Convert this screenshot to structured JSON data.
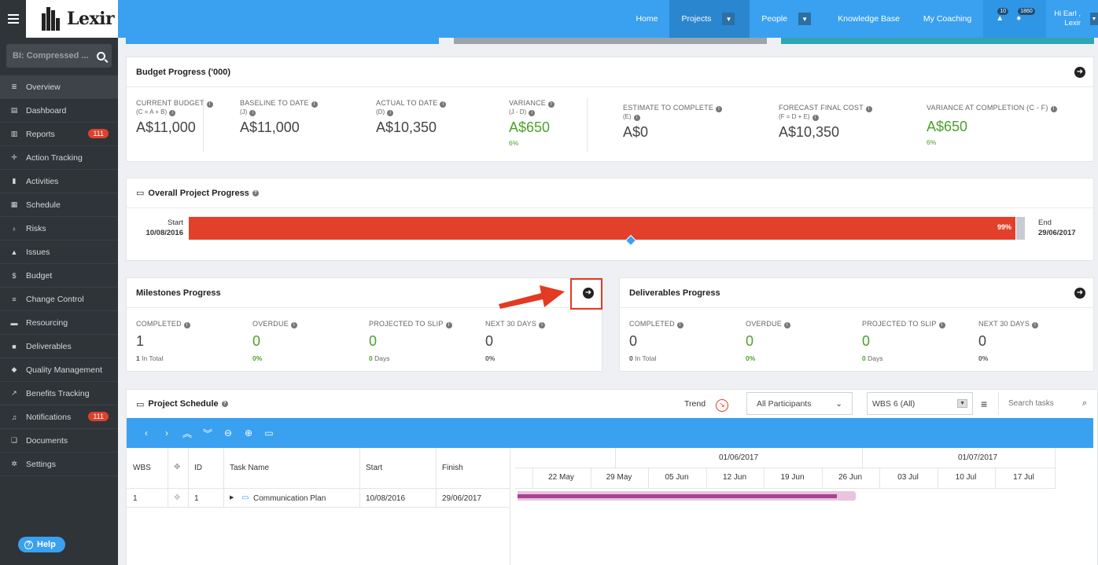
{
  "app": {
    "logo_text": "Lexir",
    "search_value": "BI: Compressed ...",
    "help_label": "Help"
  },
  "sidebar": {
    "items": [
      {
        "label": "Overview",
        "icon": "list-icon",
        "active": true
      },
      {
        "label": "Dashboard",
        "icon": "dashboard-icon"
      },
      {
        "label": "Reports",
        "icon": "bar-chart-icon",
        "badge": "111"
      },
      {
        "label": "Action Tracking",
        "icon": "crosshair-icon"
      },
      {
        "label": "Activities",
        "icon": "bookmark-icon"
      },
      {
        "label": "Schedule",
        "icon": "calendar-icon"
      },
      {
        "label": "Risks",
        "icon": "bulb-icon"
      },
      {
        "label": "Issues",
        "icon": "warning-icon"
      },
      {
        "label": "Budget",
        "icon": "dollar-icon"
      },
      {
        "label": "Change Control",
        "icon": "change-icon"
      },
      {
        "label": "Resourcing",
        "icon": "folder-icon"
      },
      {
        "label": "Deliverables",
        "icon": "truck-icon"
      },
      {
        "label": "Quality Management",
        "icon": "tag-icon"
      },
      {
        "label": "Benefits Tracking",
        "icon": "line-chart-icon"
      },
      {
        "label": "Notifications",
        "icon": "bell-icon",
        "badge": "111"
      },
      {
        "label": "Documents",
        "icon": "documents-icon"
      },
      {
        "label": "Settings",
        "icon": "cogs-icon"
      }
    ]
  },
  "topnav": {
    "home": "Home",
    "projects": "Projects",
    "people": "People",
    "knowledge_base": "Knowledge Base",
    "my_coaching": "My Coaching",
    "alert_count": "10",
    "notification_count": "1860",
    "user_greeting": "Hi Earl ,",
    "user_org": "Lexir"
  },
  "budget": {
    "title": "Budget Progress ('000)",
    "metrics": [
      {
        "label": "CURRENT BUDGET",
        "sub": "(C = A + B)",
        "value": "A$11,000"
      },
      {
        "label": "BASELINE TO DATE",
        "sub": "(J)",
        "value": "A$11,000"
      },
      {
        "label": "ACTUAL TO DATE",
        "sub": "(D)",
        "value": "A$10,350"
      },
      {
        "label": "VARIANCE",
        "sub": "(J - D)",
        "value": "A$650",
        "pct": "6%"
      },
      {
        "label": "ESTIMATE TO COMPLETE",
        "sub": "(E)",
        "value": "A$0"
      },
      {
        "label": "FORECAST FINAL COST",
        "sub": "(F = D + E)",
        "value": "A$10,350"
      },
      {
        "label": "VARIANCE AT COMPLETION (C - F)",
        "sub": "",
        "value": "A$650",
        "pct": "6%"
      }
    ]
  },
  "overall": {
    "title": "Overall Project Progress",
    "start_label": "Start",
    "start_date": "10/08/2016",
    "end_label": "End",
    "end_date": "29/06/2017",
    "percent_label": "99%",
    "percent": 0.99
  },
  "milestones": {
    "title": "Milestones Progress",
    "metrics": [
      {
        "label": "COMPLETED",
        "value": "1",
        "sub": "1",
        "sub_suffix": "In Total"
      },
      {
        "label": "OVERDUE",
        "value": "0",
        "sub": "0%"
      },
      {
        "label": "PROJECTED TO SLIP",
        "value": "0",
        "sub": "0",
        "sub_suffix": "Days"
      },
      {
        "label": "NEXT 30 DAYS",
        "value": "0",
        "sub": "0%"
      }
    ]
  },
  "deliverables": {
    "title": "Deliverables Progress",
    "metrics": [
      {
        "label": "COMPLETED",
        "value": "0",
        "sub": "0",
        "sub_suffix": "In Total"
      },
      {
        "label": "OVERDUE",
        "value": "0",
        "sub": "0%"
      },
      {
        "label": "PROJECTED TO SLIP",
        "value": "0",
        "sub": "0",
        "sub_suffix": "Days"
      },
      {
        "label": "NEXT 30 DAYS",
        "value": "0",
        "sub": "0%"
      }
    ]
  },
  "schedule": {
    "title": "Project Schedule",
    "trend_label": "Trend",
    "participants_value": "All Participants",
    "wbs_value": "WBS 6 (All)",
    "search_placeholder": "Search tasks",
    "columns": [
      "WBS",
      "ID",
      "Task Name",
      "Start",
      "Finish"
    ],
    "months": [
      "01/06/2017",
      "01/07/2017"
    ],
    "weeks": [
      "22 May",
      "29 May",
      "05 Jun",
      "12 Jun",
      "19 Jun",
      "26 Jun",
      "03 Jul",
      "10 Jul",
      "17 Jul"
    ],
    "rows": [
      {
        "wbs": "1",
        "id": "1",
        "task": "Communication Plan",
        "start": "10/08/2016",
        "finish": "29/06/2017"
      }
    ]
  },
  "colors": {
    "brand_blue": "#3aa0f0",
    "progress_red": "#e2402b",
    "positive_green": "#4aa12a",
    "sidebar_bg": "#2f3439",
    "gantt_bar": "#a9418f"
  }
}
